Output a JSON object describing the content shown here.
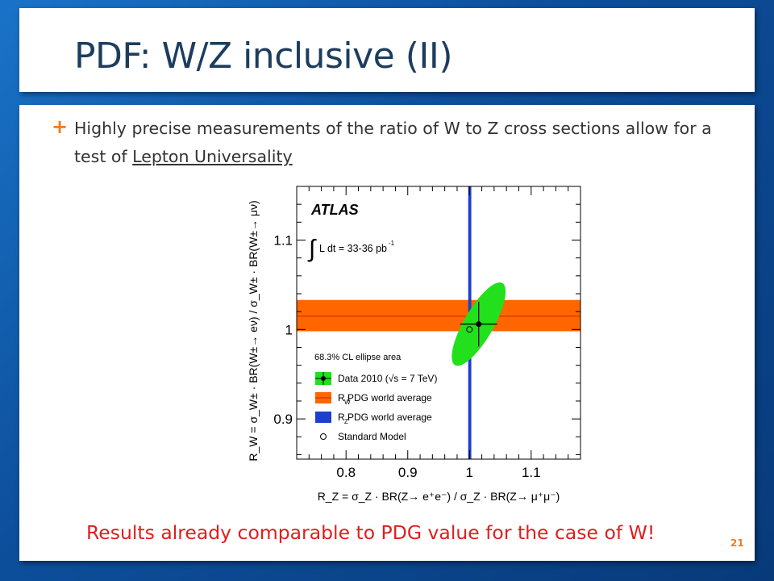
{
  "slide": {
    "title": "PDF: W/Z inclusive (II)",
    "bullet_text": "Highly precise measurements of the ratio of W to Z cross sections allow for a test of ",
    "bullet_link": "Lepton Universality",
    "conclusion": "Results already comparable to PDG value for the case of W!",
    "page_number": "21",
    "colors": {
      "title": "#1c3d5e",
      "accent": "#ef7b1f",
      "conclusion": "#e01e1e"
    }
  },
  "chart_data": {
    "type": "scatter",
    "experiment": "ATLAS",
    "luminosity_label": "L dt = 33-36 pb",
    "luminosity_exp": "-1",
    "ellipse_label": "68.3% CL ellipse area",
    "xlabel": "R_Z = σ_Z · BR(Z→ e⁺e⁻) / σ_Z · BR(Z→ μ⁺μ⁻)",
    "ylabel": "R_W = σ_W± · BR(W±→ eν) / σ_W± · BR(W±→ μν)",
    "xlim": [
      0.72,
      1.18
    ],
    "ylim": [
      0.855,
      1.16
    ],
    "x_ticks": [
      0.8,
      0.9,
      1,
      1.1
    ],
    "x_tick_labels": [
      "0.8",
      "0.9",
      "1",
      "1.1"
    ],
    "y_ticks": [
      0.9,
      1,
      1.1
    ],
    "y_tick_labels": [
      "0.9",
      "1",
      "1.1"
    ],
    "data_point": {
      "x": 1.015,
      "y": 1.006,
      "xerr": 0.03,
      "yerr": 0.025
    },
    "ellipse": {
      "cx": 1.015,
      "cy": 1.006,
      "rx": 0.024,
      "ry": 0.053,
      "rotation_deg": 30
    },
    "standard_model": {
      "x": 1.0,
      "y": 1.0
    },
    "rw_pdg_band": {
      "center": 1.015,
      "low": 0.998,
      "high": 1.033
    },
    "rz_pdg_band": {
      "center": 1.0,
      "low": 0.998,
      "high": 1.003
    },
    "legend": [
      {
        "key": "data",
        "label": "Data 2010 (√s = 7 TeV)"
      },
      {
        "key": "rw",
        "label": "R  PDG world average",
        "sub": "W"
      },
      {
        "key": "rz",
        "label": "R  PDG world average",
        "sub": "Z"
      },
      {
        "key": "sm",
        "label": "Standard Model"
      }
    ],
    "colors": {
      "ellipse": "#22e01c",
      "rw_band": "#ff6600",
      "rw_line": "#e03a00",
      "rz_band": "#1b3fd0",
      "point": "#000000"
    }
  }
}
